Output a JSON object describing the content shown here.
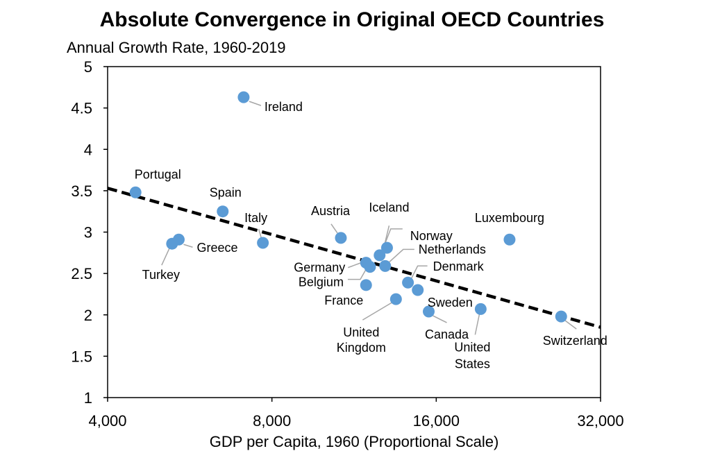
{
  "chart_data": {
    "type": "scatter",
    "title": "Absolute Convergence in Original OECD Countries",
    "subtitle": "Annual Growth Rate, 1960-2019",
    "xlabel": "GDP per Capita, 1960 (Proportional Scale)",
    "xscale": "log",
    "xlim": [
      4000,
      32000
    ],
    "ylim": [
      1,
      5
    ],
    "xticks": [
      4000,
      8000,
      16000,
      32000
    ],
    "xtick_labels": [
      "4,000",
      "8,000",
      "16,000",
      "32,000"
    ],
    "yticks": [
      1,
      1.5,
      2,
      2.5,
      3,
      3.5,
      4,
      4.5,
      5
    ],
    "ytick_labels": [
      "1",
      "1.5",
      "2",
      "2.5",
      "3",
      "3.5",
      "4",
      "4.5",
      "5"
    ],
    "grid": false,
    "point_color": "#5b9bd5",
    "trendline": {
      "style": "dashed",
      "color": "#000000",
      "points": [
        [
          4000,
          3.53
        ],
        [
          32000,
          1.85
        ]
      ]
    },
    "points": [
      {
        "label": "Ireland",
        "x": 7100,
        "y": 4.63
      },
      {
        "label": "Portugal",
        "x": 4500,
        "y": 3.48
      },
      {
        "label": "Spain",
        "x": 6500,
        "y": 3.25
      },
      {
        "label": "Italy",
        "x": 7700,
        "y": 2.87
      },
      {
        "label": "Greece",
        "x": 5400,
        "y": 2.91
      },
      {
        "label": "Turkey",
        "x": 5250,
        "y": 2.86
      },
      {
        "label": "Austria",
        "x": 10700,
        "y": 2.93
      },
      {
        "label": "Iceland",
        "x": 13000,
        "y": 2.81
      },
      {
        "label": "Norway",
        "x": 12600,
        "y": 2.72
      },
      {
        "label": "Netherlands",
        "x": 12900,
        "y": 2.59
      },
      {
        "label": "Germany",
        "x": 11900,
        "y": 2.63
      },
      {
        "label": "Belgium",
        "x": 12100,
        "y": 2.58
      },
      {
        "label": "Denmark",
        "x": 14200,
        "y": 2.39
      },
      {
        "label": "France",
        "x": 11900,
        "y": 2.36
      },
      {
        "label": "Sweden",
        "x": 14800,
        "y": 2.3
      },
      {
        "label": "United Kingdom",
        "x": 13500,
        "y": 2.19
      },
      {
        "label": "Canada",
        "x": 15500,
        "y": 2.04
      },
      {
        "label": "United States",
        "x": 19300,
        "y": 2.07
      },
      {
        "label": "Luxembourg",
        "x": 21800,
        "y": 2.91
      },
      {
        "label": "Switzerland",
        "x": 27100,
        "y": 1.98
      }
    ]
  }
}
